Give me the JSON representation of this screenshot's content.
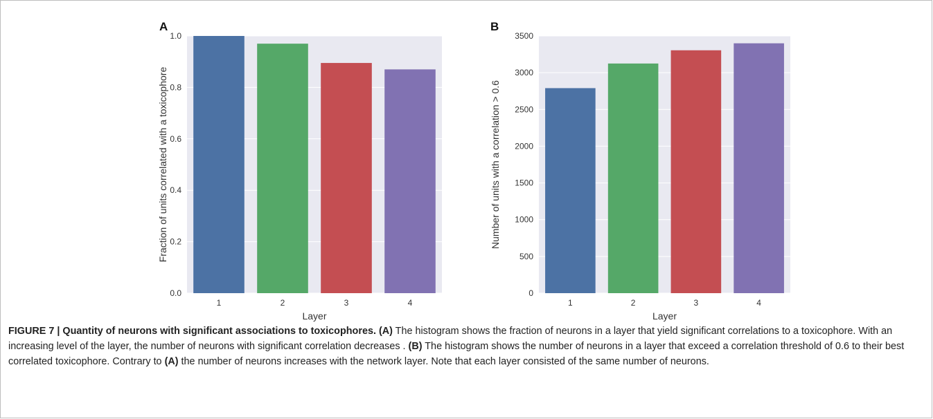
{
  "chart_data": [
    {
      "panel_label": "A",
      "type": "bar",
      "categories": [
        "1",
        "2",
        "3",
        "4"
      ],
      "values": [
        1.0,
        0.97,
        0.895,
        0.87
      ],
      "xlabel": "Layer",
      "ylabel": "Fraction of units correlated with a toxicophore",
      "ylim": [
        0,
        1.0
      ],
      "yticks": [
        "0.0",
        "0.2",
        "0.4",
        "0.6",
        "0.8",
        "1.0"
      ],
      "grid": true,
      "colors": [
        "#4c72a4",
        "#55a868",
        "#c44e52",
        "#8172b2"
      ]
    },
    {
      "panel_label": "B",
      "type": "bar",
      "categories": [
        "1",
        "2",
        "3",
        "4"
      ],
      "values": [
        2790,
        3125,
        3305,
        3400
      ],
      "xlabel": "Layer",
      "ylabel": "Number of units with a correlation > 0.6",
      "ylim": [
        0,
        3500
      ],
      "yticks": [
        "0",
        "500",
        "1000",
        "1500",
        "2000",
        "2500",
        "3000",
        "3500"
      ],
      "grid": true,
      "colors": [
        "#4c72a4",
        "#55a868",
        "#c44e52",
        "#8172b2"
      ]
    }
  ],
  "style": {
    "plot_background": "#e9e9f1",
    "grid_color": "#ffffff"
  },
  "caption": {
    "lead": "FIGURE 7 | Quantity of neurons with significant associations to toxicophores.",
    "ref_a1": "(A)",
    "text1": " The histogram shows the fraction of neurons in a layer that yield significant correlations to a toxicophore. With an increasing level of the layer, the number of neurons with significant correlation decreases . ",
    "ref_b": "(B)",
    "text2": " The histogram shows the number of neurons in a layer that exceed a correlation threshold of 0.6 to their best correlated toxicophore. Contrary to ",
    "ref_a2": "(A)",
    "text3": " the number of neurons increases with the network layer. Note that each layer consisted of the same number of neurons."
  }
}
